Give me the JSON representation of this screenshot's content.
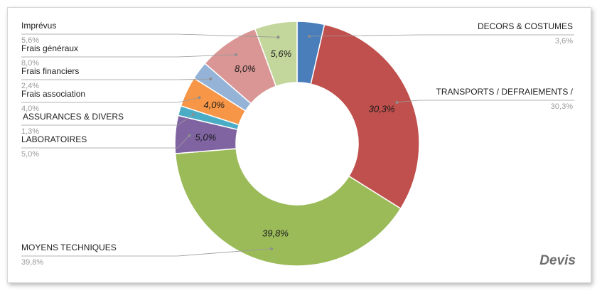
{
  "chart_data": {
    "type": "pie",
    "donut": true,
    "title": "",
    "series": [
      {
        "name": "DECORS & COSTUMES",
        "label_pct": "3,6%",
        "inner_label": "",
        "value": 3.6,
        "color": "#4a7ebb"
      },
      {
        "name": "TRANSPORTS / DEFRAIEMENTS /",
        "label_pct": "30,3%",
        "inner_label": "30,3%",
        "value": 30.3,
        "color": "#c0504d"
      },
      {
        "name": "MOYENS TECHNIQUES",
        "label_pct": "39,8%",
        "inner_label": "39,8%",
        "value": 39.8,
        "color": "#9bbb59"
      },
      {
        "name": "LABORATOIRES",
        "label_pct": "5,0%",
        "inner_label": "5,0%",
        "value": 5.0,
        "color": "#8064a2"
      },
      {
        "name": "ASSURANCES & DIVERS",
        "label_pct": "1,3%",
        "inner_label": "",
        "value": 1.3,
        "color": "#4bacc6"
      },
      {
        "name": "Frais association",
        "label_pct": "4,0%",
        "inner_label": "4,0%",
        "value": 4.0,
        "color": "#f79646"
      },
      {
        "name": "Frais financiers",
        "label_pct": "2,4%",
        "inner_label": "",
        "value": 2.4,
        "color": "#95b3d7"
      },
      {
        "name": "Frais généraux",
        "label_pct": "8,0%",
        "inner_label": "8,0%",
        "value": 8.0,
        "color": "#d99694"
      },
      {
        "name": "Imprévus",
        "label_pct": "5,6%",
        "inner_label": "5,6%",
        "value": 5.6,
        "color": "#c3d69b"
      }
    ]
  },
  "brand": "Devis"
}
